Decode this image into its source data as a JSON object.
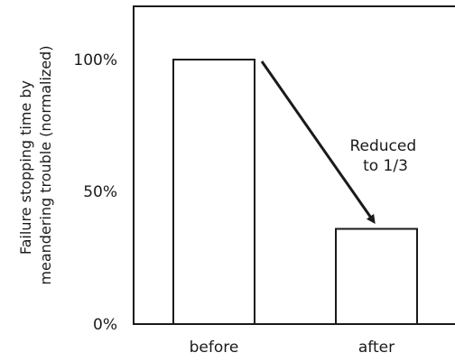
{
  "chart_data": {
    "type": "bar",
    "categories": [
      "before",
      "after"
    ],
    "values": [
      100,
      36
    ],
    "yticks": [
      {
        "value": 0,
        "label": "0%"
      },
      {
        "value": 50,
        "label": "50%"
      },
      {
        "value": 100,
        "label": "100%"
      }
    ],
    "ylim": [
      0,
      100
    ],
    "ylabel_lines": [
      "Failure stopping time by",
      "meandering trouble (normalized)"
    ],
    "annotation_lines": [
      "Reduced",
      "to 1/3"
    ],
    "grid": false,
    "legend": "none"
  },
  "colors": {
    "ink": "#1a1a1a",
    "bar_fill": "#ffffff",
    "background": "#ffffff"
  }
}
